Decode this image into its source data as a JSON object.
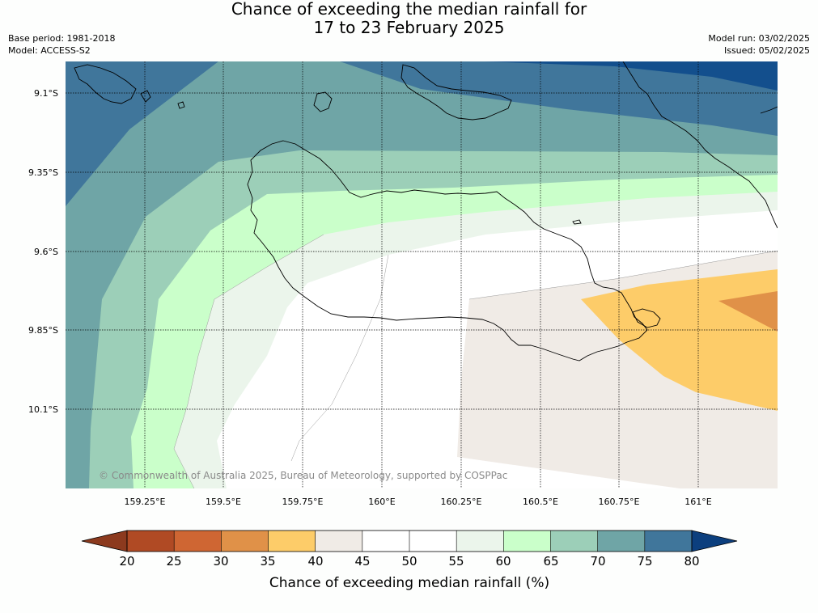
{
  "title": {
    "line1": "Chance of exceeding the median rainfall for",
    "line2": "17 to 23 February 2025"
  },
  "meta": {
    "base_period": "Base period: 1981-2018",
    "model": "Model: ACCESS-S2",
    "model_run": "Model run: 03/02/2025",
    "issued": "Issued: 05/02/2025"
  },
  "credit": "© Commonwealth of Australia 2025, Bureau of Meteorology, supported by COSPPac",
  "map": {
    "lon_range": [
      159.0,
      161.25
    ],
    "lat_range": [
      -9.0,
      -10.35
    ],
    "lon_ticks": [
      {
        "value": 159.25,
        "label": "159.25°E"
      },
      {
        "value": 159.5,
        "label": "159.5°E"
      },
      {
        "value": 159.75,
        "label": "159.75°E"
      },
      {
        "value": 160.0,
        "label": "160°E"
      },
      {
        "value": 160.25,
        "label": "160.25°E"
      },
      {
        "value": 160.5,
        "label": "160.5°E"
      },
      {
        "value": 160.75,
        "label": "160.75°E"
      },
      {
        "value": 161.0,
        "label": "161°E"
      }
    ],
    "lat_ticks": [
      {
        "value": -9.1,
        "label": "9.1°S"
      },
      {
        "value": -9.35,
        "label": "9.35°S"
      },
      {
        "value": -9.6,
        "label": "9.6°S"
      },
      {
        "value": -9.85,
        "label": "9.85°S"
      },
      {
        "value": -10.1,
        "label": "10.1°S"
      }
    ],
    "gridlines": true,
    "coastline_color": "#000000"
  },
  "colorbar": {
    "title": "Chance of exceeding median rainfall (%)",
    "labels": [
      "20",
      "25",
      "30",
      "35",
      "40",
      "45",
      "50",
      "55",
      "60",
      "65",
      "70",
      "75",
      "80"
    ],
    "under_color": "#8c3a1e",
    "over_color": "#0c3f7e",
    "colors": [
      "#b04a24",
      "#cf6633",
      "#e09148",
      "#fdcc69",
      "#f0ebe6",
      "#ffffff",
      "#ffffff",
      "#ebf5eb",
      "#caffca",
      "#9ccfb8",
      "#6fa5a6",
      "#40769b"
    ]
  }
}
